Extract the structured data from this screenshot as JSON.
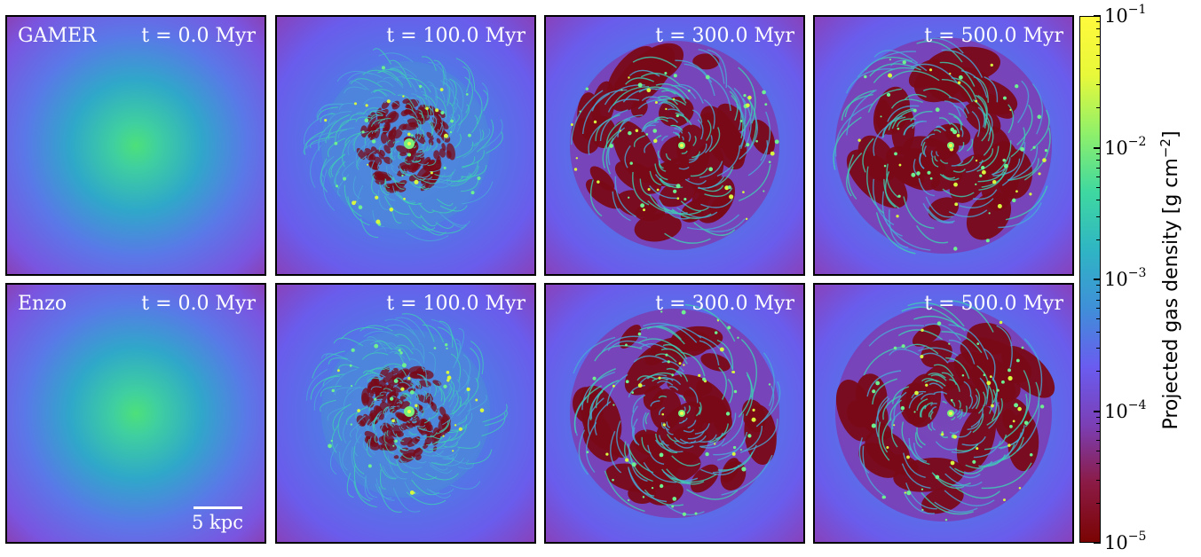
{
  "panels": [
    {
      "code": "GAMER",
      "time": "t = 0.0 Myr",
      "stage": 0
    },
    {
      "code": "",
      "time": "t = 100.0 Myr",
      "stage": 1
    },
    {
      "code": "",
      "time": "t = 300.0 Myr",
      "stage": 2
    },
    {
      "code": "",
      "time": "t = 500.0 Myr",
      "stage": 3
    },
    {
      "code": "Enzo",
      "time": "t = 0.0 Myr",
      "stage": 0
    },
    {
      "code": "",
      "time": "t = 100.0 Myr",
      "stage": 1
    },
    {
      "code": "",
      "time": "t = 300.0 Myr",
      "stage": 2
    },
    {
      "code": "",
      "time": "t = 500.0 Myr",
      "stage": 3
    }
  ],
  "scalebar": {
    "label": "5 kpc"
  },
  "colorbar": {
    "title": "Projected gas density [g cm",
    "title_exp": "−2",
    "title_end": "]",
    "scale": "log",
    "range": [
      1e-05,
      0.1
    ],
    "ticks": [
      {
        "base": "10",
        "exp": "−1",
        "value": 0.1
      },
      {
        "base": "10",
        "exp": "−2",
        "value": 0.01
      },
      {
        "base": "10",
        "exp": "−3",
        "value": 0.001
      },
      {
        "base": "10",
        "exp": "−4",
        "value": 0.0001
      },
      {
        "base": "10",
        "exp": "−5",
        "value": 1e-05
      }
    ],
    "colormap": [
      "#7a0403",
      "#8b1a44",
      "#7b3fb5",
      "#6a5cf0",
      "#3f8fd8",
      "#2fb5c4",
      "#3fd8a0",
      "#8ff06a",
      "#e8f83a",
      "#fff93c"
    ]
  }
}
